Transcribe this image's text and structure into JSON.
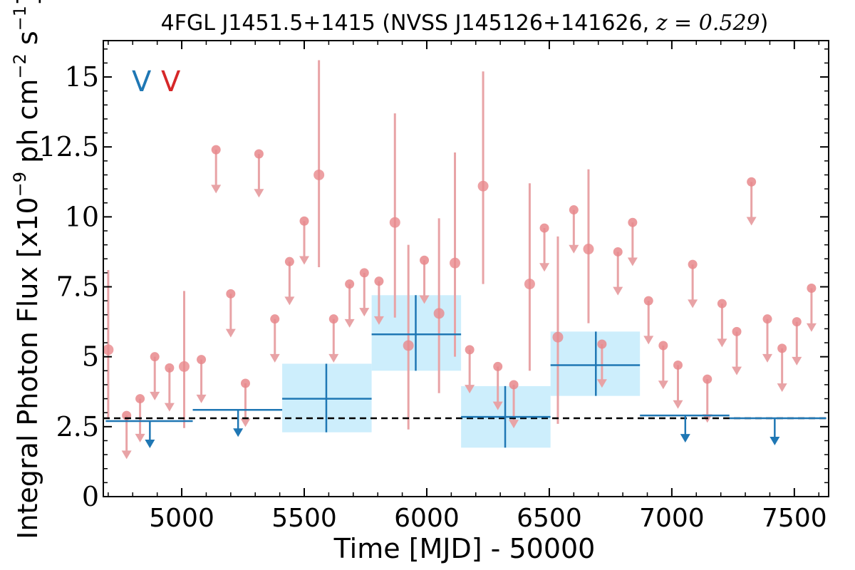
{
  "chart_data": {
    "type": "scatter",
    "title": "4FGL J1451.5+1415 (NVSS J145126+141626, ",
    "title_math": "z = 0.529",
    "title_close": ")",
    "xlabel": "Time [MJD] - 50000",
    "ylabel": "Integral Photon Flux [x10",
    "ylabel_exp1": "−9",
    "ylabel_mid": " ph cm",
    "ylabel_exp2": "−2",
    "ylabel_mid2": " s",
    "ylabel_exp3": "−1",
    "ylabel_close": "]",
    "xlim": [
      4680,
      7640
    ],
    "ylim": [
      0,
      16.3
    ],
    "x_ticks": [
      5000,
      5500,
      6000,
      6500,
      7000,
      7500
    ],
    "x_tick_labels": [
      "5000",
      "5500",
      "6000",
      "6500",
      "7000",
      "7500"
    ],
    "y_ticks": [
      0,
      2.5,
      5,
      7.5,
      10,
      12.5,
      15
    ],
    "y_tick_labels": [
      "0",
      "2.5",
      "5",
      "7.5",
      "10",
      "12.5",
      "15"
    ],
    "grid": false,
    "reference_line_y": 2.8,
    "legend": [
      {
        "label": "V",
        "color": "#1f77b4"
      },
      {
        "label": "V",
        "color": "#d62728"
      }
    ],
    "colors": {
      "red_points": "#e8888c",
      "red_line": "#e8a3a6",
      "blue": "#1f77b4",
      "blue_fill": "#cdeefc",
      "ref_line": "#000000"
    },
    "series": [
      {
        "name": "V",
        "kind": "monthly",
        "detections": [
          {
            "x": 4700,
            "y": 5.25,
            "ylo": 2.8,
            "yhi": 8.1
          },
          {
            "x": 5010,
            "y": 4.65,
            "ylo": 2.45,
            "yhi": 7.35
          },
          {
            "x": 5560,
            "y": 11.5,
            "ylo": 8.2,
            "yhi": 15.6
          },
          {
            "x": 5870,
            "y": 9.8,
            "ylo": 6.4,
            "yhi": 13.7
          },
          {
            "x": 5925,
            "y": 5.4,
            "ylo": 2.4,
            "yhi": 9.0
          },
          {
            "x": 6050,
            "y": 6.55,
            "ylo": 3.7,
            "yhi": 9.95
          },
          {
            "x": 6115,
            "y": 8.35,
            "ylo": 5.0,
            "yhi": 12.3
          },
          {
            "x": 6230,
            "y": 11.1,
            "ylo": 7.6,
            "yhi": 15.2
          },
          {
            "x": 6420,
            "y": 7.6,
            "ylo": 4.5,
            "yhi": 11.2
          },
          {
            "x": 6535,
            "y": 5.7,
            "ylo": 2.6,
            "yhi": 9.3
          },
          {
            "x": 6660,
            "y": 8.85,
            "ylo": 6.2,
            "yhi": 11.7
          }
        ],
        "upper_limits": [
          {
            "x": 4775,
            "y": 2.9
          },
          {
            "x": 4830,
            "y": 3.5
          },
          {
            "x": 4890,
            "y": 5.0
          },
          {
            "x": 4950,
            "y": 4.6
          },
          {
            "x": 5080,
            "y": 4.9
          },
          {
            "x": 5140,
            "y": 12.4
          },
          {
            "x": 5200,
            "y": 7.25
          },
          {
            "x": 5260,
            "y": 4.05
          },
          {
            "x": 5315,
            "y": 12.25
          },
          {
            "x": 5380,
            "y": 6.35
          },
          {
            "x": 5440,
            "y": 8.4
          },
          {
            "x": 5500,
            "y": 9.85
          },
          {
            "x": 5620,
            "y": 6.35
          },
          {
            "x": 5685,
            "y": 7.6
          },
          {
            "x": 5745,
            "y": 8.0
          },
          {
            "x": 5805,
            "y": 7.7
          },
          {
            "x": 5990,
            "y": 8.45
          },
          {
            "x": 6175,
            "y": 5.25
          },
          {
            "x": 6290,
            "y": 4.65
          },
          {
            "x": 6355,
            "y": 4.0
          },
          {
            "x": 6480,
            "y": 9.6
          },
          {
            "x": 6600,
            "y": 10.25
          },
          {
            "x": 6715,
            "y": 5.45
          },
          {
            "x": 6780,
            "y": 8.75
          },
          {
            "x": 6840,
            "y": 9.8
          },
          {
            "x": 6905,
            "y": 7.0
          },
          {
            "x": 6965,
            "y": 5.4
          },
          {
            "x": 7025,
            "y": 4.7
          },
          {
            "x": 7085,
            "y": 8.3
          },
          {
            "x": 7145,
            "y": 4.2
          },
          {
            "x": 7205,
            "y": 6.9
          },
          {
            "x": 7265,
            "y": 5.9
          },
          {
            "x": 7325,
            "y": 11.25
          },
          {
            "x": 7390,
            "y": 6.35
          },
          {
            "x": 7450,
            "y": 5.3
          },
          {
            "x": 7510,
            "y": 6.25
          },
          {
            "x": 7570,
            "y": 7.45
          }
        ]
      },
      {
        "name": "V",
        "kind": "yearly",
        "detections": [
          {
            "x0": 5410,
            "x1": 5775,
            "x": 5590,
            "y": 3.5,
            "ylo": 2.3,
            "yhi": 4.75
          },
          {
            "x0": 5775,
            "x1": 6140,
            "x": 5955,
            "y": 5.8,
            "ylo": 4.5,
            "yhi": 7.2
          },
          {
            "x0": 6140,
            "x1": 6505,
            "x": 6320,
            "y": 2.85,
            "ylo": 1.75,
            "yhi": 3.95
          },
          {
            "x0": 6505,
            "x1": 6870,
            "x": 6690,
            "y": 4.7,
            "ylo": 3.6,
            "yhi": 5.9
          }
        ],
        "upper_limits": [
          {
            "x0": 4690,
            "x1": 5045,
            "x": 4870,
            "y": 2.7
          },
          {
            "x0": 5045,
            "x1": 5410,
            "x": 5230,
            "y": 3.1
          },
          {
            "x0": 6870,
            "x1": 7235,
            "x": 7055,
            "y": 2.9
          },
          {
            "x0": 7235,
            "x1": 7630,
            "x": 7420,
            "y": 2.8
          }
        ]
      }
    ]
  }
}
